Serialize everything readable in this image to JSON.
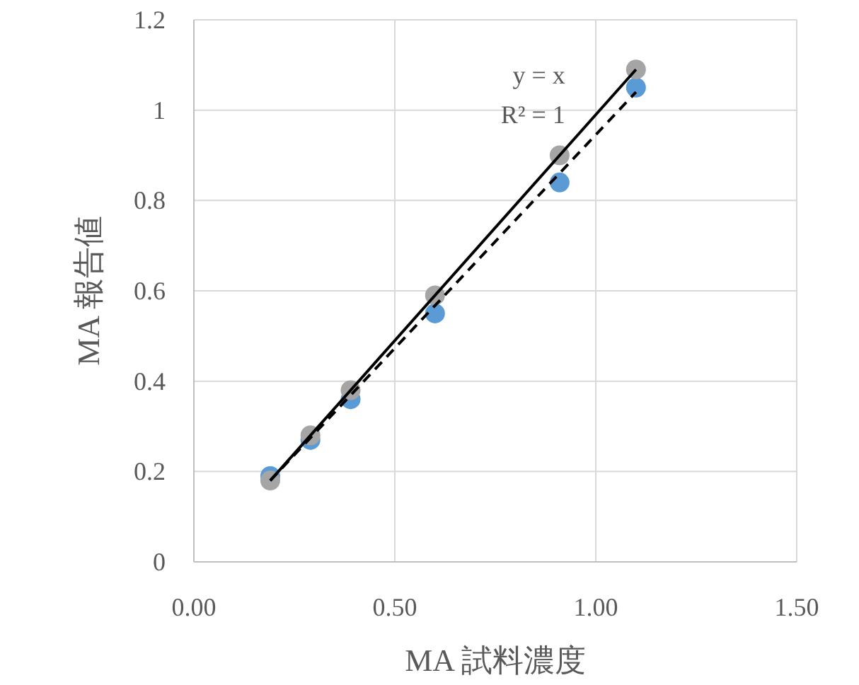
{
  "chart_data": {
    "type": "scatter",
    "xlabel": "MA 試料濃度",
    "ylabel": "MA 報告値",
    "xlim": [
      0,
      1.5
    ],
    "ylim": [
      0,
      1.2
    ],
    "xticks": [
      {
        "value": 0,
        "label": "0.00"
      },
      {
        "value": 0.5,
        "label": "0.50"
      },
      {
        "value": 1,
        "label": "1.00"
      },
      {
        "value": 1.5,
        "label": "1.50"
      }
    ],
    "yticks": [
      0,
      0.2,
      0.4,
      0.6,
      0.8,
      1,
      1.2
    ],
    "grid": true,
    "annotations": [
      "y = x",
      "R² = 1"
    ],
    "series": [
      {
        "marker": "circle",
        "color": "#5b9bd5",
        "x": [
          0.19,
          0.29,
          0.39,
          0.6,
          0.91,
          1.1
        ],
        "values": [
          0.19,
          0.27,
          0.36,
          0.55,
          0.84,
          1.05
        ]
      },
      {
        "marker": "circle",
        "color": "#a5a5a5",
        "x": [
          0.19,
          0.29,
          0.39,
          0.6,
          0.91,
          1.1
        ],
        "values": [
          0.18,
          0.28,
          0.38,
          0.59,
          0.9,
          1.09
        ]
      },
      {
        "type": "line",
        "color": "#000000",
        "line_style": "solid",
        "marker": "none",
        "x": [
          0.19,
          1.1
        ],
        "values": [
          0.18,
          1.09
        ]
      },
      {
        "type": "line",
        "color": "#000000",
        "line_style": "dashed",
        "marker": "none",
        "x": [
          0.19,
          1.1
        ],
        "values": [
          0.18,
          1.04
        ]
      }
    ]
  }
}
